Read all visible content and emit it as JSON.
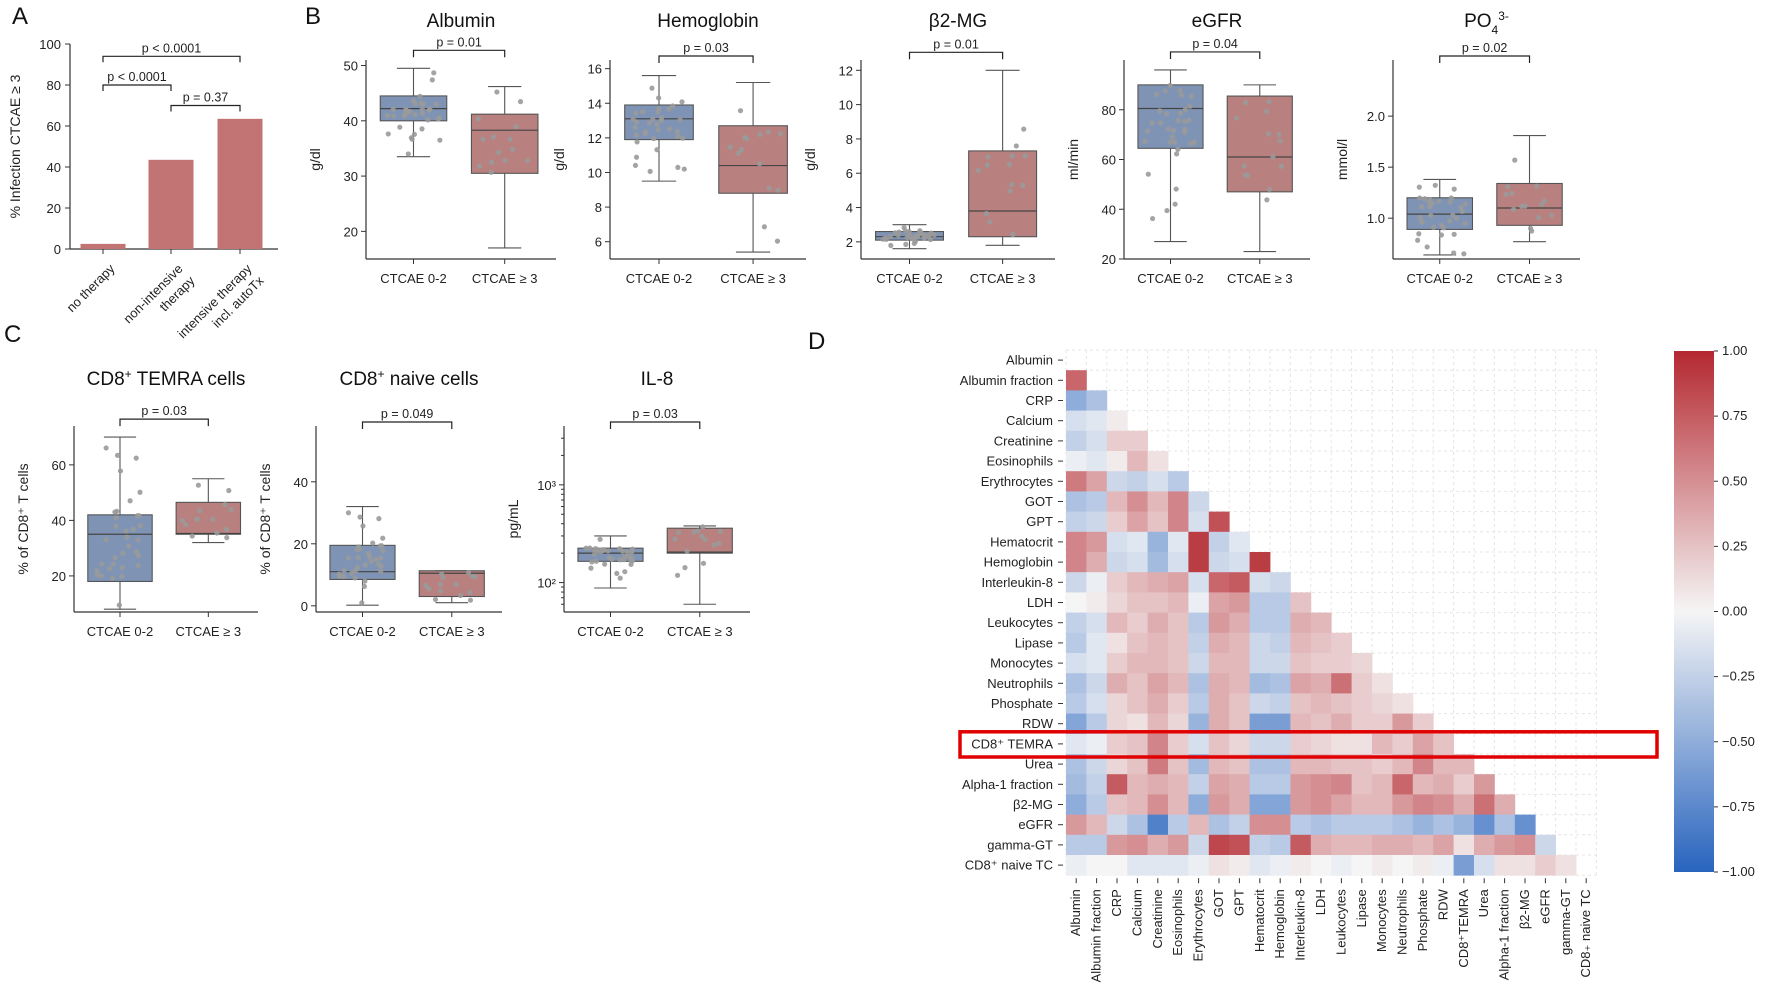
{
  "panel_labels": {
    "A": "A",
    "B": "B",
    "C": "C",
    "D": "D"
  },
  "colors": {
    "bar": "#c27474",
    "blue_box": "#7f94b5",
    "red_box": "#b98080",
    "point": "#9a9a9a",
    "highlight": "#e00000"
  },
  "chart_data": [
    {
      "id": "A",
      "type": "bar",
      "categories": [
        "no therapy",
        "non-intensive therapy",
        "intensive therapy incl. autoTx"
      ],
      "category_lines": [
        [
          "no therapy"
        ],
        [
          "non-intensive",
          "therapy"
        ],
        [
          "intensive therapy",
          "incl. autoTx"
        ]
      ],
      "values": [
        2.5,
        43.5,
        63.5
      ],
      "ylabel": "% Infection CTCAE ≥ 3",
      "ylim": [
        0,
        100
      ],
      "yticks": [
        0,
        20,
        40,
        60,
        80,
        100
      ],
      "comparisons": [
        {
          "from": 0,
          "to": 2,
          "label": "p < 0.0001",
          "y": 94
        },
        {
          "from": 0,
          "to": 1,
          "label": "p < 0.0001",
          "y": 80
        },
        {
          "from": 1,
          "to": 2,
          "label": "p = 0.37",
          "y": 70
        }
      ]
    },
    {
      "id": "B-albumin",
      "type": "box",
      "title": "Albumin",
      "ylabel": "g/dl",
      "ylim": [
        15,
        51
      ],
      "yticks": [
        20,
        30,
        40,
        50
      ],
      "tick_labels": [
        "20",
        "30",
        "40",
        "50"
      ],
      "categories": [
        "CTCAE 0-2",
        "CTCAE ≥ 3"
      ],
      "p_label": "p = 0.01",
      "boxes": [
        {
          "group": "CTCAE 0-2",
          "whisker_low": 33.5,
          "q1": 40,
          "median": 42.2,
          "q3": 44.5,
          "whisker_high": 49.5
        },
        {
          "group": "CTCAE ≥ 3",
          "whisker_low": 17,
          "q1": 30.5,
          "median": 38.3,
          "q3": 41.2,
          "whisker_high": 46.2
        }
      ]
    },
    {
      "id": "B-hemoglobin",
      "type": "box",
      "title": "Hemoglobin",
      "ylabel": "g/dl",
      "ylim": [
        5,
        16.5
      ],
      "yticks": [
        6,
        8,
        10,
        12,
        14,
        16
      ],
      "tick_labels": [
        "6",
        "8",
        "10",
        "12",
        "14",
        "16"
      ],
      "categories": [
        "CTCAE 0-2",
        "CTCAE ≥ 3"
      ],
      "p_label": "p = 0.03",
      "boxes": [
        {
          "group": "CTCAE 0-2",
          "whisker_low": 9.5,
          "q1": 11.9,
          "median": 13.1,
          "q3": 13.9,
          "whisker_high": 15.6
        },
        {
          "group": "CTCAE ≥ 3",
          "whisker_low": 5.4,
          "q1": 8.8,
          "median": 10.4,
          "q3": 12.7,
          "whisker_high": 15.2
        }
      ]
    },
    {
      "id": "B-b2mg",
      "type": "box",
      "title": "β2-MG",
      "ylabel": "g/dl",
      "ylim": [
        1,
        12.6
      ],
      "yticks": [
        2,
        4,
        6,
        8,
        10,
        12
      ],
      "tick_labels": [
        "2",
        "4",
        "6",
        "8",
        "10",
        "12"
      ],
      "categories": [
        "CTCAE 0-2",
        "CTCAE ≥ 3"
      ],
      "p_label": "p = 0.01",
      "boxes": [
        {
          "group": "CTCAE 0-2",
          "whisker_low": 1.6,
          "q1": 2.1,
          "median": 2.3,
          "q3": 2.6,
          "whisker_high": 3.0
        },
        {
          "group": "CTCAE ≥ 3",
          "whisker_low": 1.8,
          "q1": 2.3,
          "median": 3.8,
          "q3": 7.3,
          "whisker_high": 12.0
        }
      ]
    },
    {
      "id": "B-egfr",
      "type": "box",
      "title": "eGFR",
      "ylabel": "ml/min",
      "ylim": [
        20,
        100
      ],
      "yticks": [
        20,
        40,
        60,
        80
      ],
      "tick_labels": [
        "20",
        "40",
        "60",
        "80"
      ],
      "categories": [
        "CTCAE 0-2",
        "CTCAE ≥ 3"
      ],
      "p_label": "p = 0.04",
      "boxes": [
        {
          "group": "CTCAE 0-2",
          "whisker_low": 27,
          "q1": 64.5,
          "median": 80.5,
          "q3": 90,
          "whisker_high": 96
        },
        {
          "group": "CTCAE ≥ 3",
          "whisker_low": 23,
          "q1": 47,
          "median": 61,
          "q3": 85.5,
          "whisker_high": 90
        }
      ]
    },
    {
      "id": "B-po4",
      "type": "box",
      "title": "PO",
      "title_sub": "4",
      "title_sup": "3-",
      "ylabel": "mmol/l",
      "ylim": [
        0.6,
        2.55
      ],
      "yticks": [
        1.0,
        1.5,
        2.0
      ],
      "tick_labels": [
        "1.0",
        "1.5",
        "2.0"
      ],
      "categories": [
        "CTCAE 0-2",
        "CTCAE ≥ 3"
      ],
      "p_label": "p = 0.02",
      "boxes": [
        {
          "group": "CTCAE 0-2",
          "whisker_low": 0.64,
          "q1": 0.89,
          "median": 1.04,
          "q3": 1.2,
          "whisker_high": 1.38
        },
        {
          "group": "CTCAE ≥ 3",
          "whisker_low": 0.77,
          "q1": 0.93,
          "median": 1.1,
          "q3": 1.34,
          "whisker_high": 1.81
        }
      ]
    },
    {
      "id": "C-temra",
      "type": "box",
      "title": "CD8",
      "title_sup": "+",
      "title_rest": " TEMRA cells",
      "ylabel": "% of CD8⁺ T cells",
      "ylim": [
        7,
        74
      ],
      "yticks": [
        20,
        40,
        60
      ],
      "tick_labels": [
        "20",
        "40",
        "60"
      ],
      "categories": [
        "CTCAE 0-2",
        "CTCAE ≥ 3"
      ],
      "p_label": "p = 0.03",
      "boxes": [
        {
          "group": "CTCAE 0-2",
          "whisker_low": 8,
          "q1": 18,
          "median": 35,
          "q3": 42,
          "whisker_high": 70
        },
        {
          "group": "CTCAE ≥ 3",
          "whisker_low": 32,
          "q1": 35,
          "median": 35.3,
          "q3": 46.5,
          "whisker_high": 55
        }
      ]
    },
    {
      "id": "C-naive",
      "type": "box",
      "title": "CD8",
      "title_sup": "+",
      "title_rest": " naive cells",
      "ylabel": "% of CD8⁺ T cells",
      "ylim": [
        -2,
        58
      ],
      "yticks": [
        0,
        20,
        40
      ],
      "tick_labels": [
        "0",
        "20",
        "40"
      ],
      "categories": [
        "CTCAE 0-2",
        "CTCAE ≥ 3"
      ],
      "p_label": "p = 0.049",
      "boxes": [
        {
          "group": "CTCAE 0-2",
          "whisker_low": 0.2,
          "q1": 8.5,
          "median": 11,
          "q3": 19.5,
          "whisker_high": 32
        },
        {
          "group": "CTCAE ≥ 3",
          "whisker_low": 1,
          "q1": 3,
          "median": 10.5,
          "q3": 11.3,
          "whisker_high": 11.3
        }
      ]
    },
    {
      "id": "C-il8",
      "type": "box",
      "scale": "log",
      "title": "IL-8",
      "ylabel": "pg/mL",
      "ylim": [
        50,
        4000
      ],
      "yticks": [
        100,
        1000
      ],
      "tick_labels": [
        "10²",
        "10³"
      ],
      "categories": [
        "CTCAE 0-2",
        "CTCAE ≥ 3"
      ],
      "p_label": "p = 0.03",
      "boxes": [
        {
          "group": "CTCAE 0-2",
          "whisker_low": 88,
          "q1": 165,
          "median": 200,
          "q3": 225,
          "whisker_high": 300
        },
        {
          "group": "CTCAE ≥ 3",
          "whisker_low": 60,
          "q1": 200,
          "median": 205,
          "q3": 360,
          "whisker_high": 380
        }
      ]
    },
    {
      "id": "D",
      "type": "heatmap",
      "row_labels": [
        "Albumin",
        "Albumin fraction",
        "CRP",
        "Calcium",
        "Creatinine",
        "Eosinophils",
        "Erythrocytes",
        "GOT",
        "GPT",
        "Hematocrit",
        "Hemoglobin",
        "Interleukin-8",
        "LDH",
        "Leukocytes",
        "Lipase",
        "Monocytes",
        "Neutrophils",
        "Phosphate",
        "RDW",
        "CD8⁺ TEMRA",
        "Urea",
        "Alpha-1 fraction",
        "β2-MG",
        "eGFR",
        "gamma-GT",
        "CD8⁺ naive TC"
      ],
      "col_labels": [
        "Albumin",
        "Albumin fraction",
        "CRP",
        "Calcium",
        "Creatinine",
        "Eosinophils",
        "Erythrocytes",
        "GOT",
        "GPT",
        "Hematocrit",
        "Hemoglobin",
        "Interleukin-8",
        "LDH",
        "Leukocytes",
        "Lipase",
        "Monocytes",
        "Neutrophils",
        "Phosphate",
        "RDW",
        "CD8⁺TEMRA",
        "Urea",
        "Alpha-1 fraction",
        "β2-MG",
        "eGFR",
        "gamma-GT",
        "CD8₊ naive TC"
      ],
      "highlight_row": "CD8⁺ TEMRA",
      "colorbar": {
        "min": -1.0,
        "max": 1.0,
        "ticks": [
          "1.00",
          "0.75",
          "0.50",
          "0.25",
          "0.00",
          "−0.25",
          "−0.50",
          "−0.75",
          "−1.00"
        ]
      },
      "values": [
        [],
        [
          0.7
        ],
        [
          -0.5,
          -0.35
        ],
        [
          -0.15,
          -0.1,
          0.05
        ],
        [
          -0.25,
          -0.15,
          0.2,
          0.2
        ],
        [
          -0.05,
          -0.1,
          0.05,
          0.3,
          0.1
        ],
        [
          0.6,
          0.4,
          -0.2,
          -0.25,
          -0.15,
          -0.3
        ],
        [
          -0.35,
          -0.3,
          0.3,
          0.5,
          0.3,
          0.55,
          -0.2
        ],
        [
          -0.25,
          -0.2,
          0.2,
          0.4,
          0.25,
          0.55,
          -0.15,
          0.8
        ],
        [
          0.55,
          0.45,
          -0.15,
          -0.1,
          -0.45,
          -0.1,
          0.9,
          -0.25,
          -0.1
        ],
        [
          0.55,
          0.35,
          -0.2,
          -0.15,
          -0.4,
          -0.15,
          0.9,
          -0.2,
          -0.15,
          0.9
        ],
        [
          -0.2,
          -0.05,
          0.2,
          0.3,
          0.35,
          0.4,
          -0.15,
          0.7,
          0.75,
          -0.15,
          -0.2
        ],
        [
          0.0,
          0.05,
          0.15,
          0.25,
          0.25,
          0.3,
          -0.05,
          0.4,
          0.45,
          -0.3,
          -0.3,
          0.25
        ],
        [
          -0.25,
          -0.15,
          0.3,
          0.2,
          0.35,
          0.25,
          -0.3,
          0.45,
          0.35,
          -0.3,
          -0.3,
          0.35,
          0.3
        ],
        [
          -0.3,
          -0.1,
          0.1,
          0.25,
          0.3,
          0.25,
          -0.25,
          0.35,
          0.3,
          -0.2,
          -0.25,
          0.3,
          0.25,
          0.2
        ],
        [
          -0.15,
          -0.1,
          0.2,
          0.3,
          0.3,
          0.25,
          -0.2,
          0.3,
          0.3,
          -0.2,
          -0.2,
          0.25,
          0.2,
          0.2,
          0.15
        ],
        [
          -0.35,
          -0.2,
          0.35,
          0.25,
          0.4,
          0.3,
          -0.35,
          0.35,
          0.3,
          -0.4,
          -0.35,
          0.4,
          0.35,
          0.65,
          0.2,
          0.1
        ],
        [
          -0.3,
          -0.15,
          0.15,
          0.25,
          0.35,
          0.2,
          -0.3,
          0.35,
          0.25,
          -0.2,
          -0.25,
          0.25,
          0.3,
          0.25,
          0.2,
          0.15,
          0.1
        ],
        [
          -0.55,
          -0.3,
          0.15,
          0.1,
          0.3,
          0.15,
          -0.45,
          0.35,
          0.25,
          -0.6,
          -0.6,
          0.3,
          0.25,
          0.35,
          0.2,
          0.2,
          0.45,
          0.2
        ],
        [
          -0.1,
          -0.05,
          0.2,
          0.25,
          0.55,
          0.2,
          -0.15,
          0.25,
          0.15,
          -0.2,
          -0.2,
          0.2,
          0.15,
          0.1,
          0.1,
          0.3,
          0.2,
          0.4,
          0.25
        ],
        [
          -0.35,
          -0.2,
          0.15,
          0.25,
          0.6,
          0.25,
          -0.4,
          0.3,
          0.25,
          -0.35,
          -0.35,
          0.3,
          0.3,
          0.25,
          0.25,
          0.2,
          0.3,
          0.55,
          0.3,
          0.3
        ],
        [
          -0.4,
          -0.25,
          0.75,
          0.3,
          0.35,
          0.3,
          -0.25,
          0.4,
          0.35,
          -0.3,
          -0.3,
          0.45,
          0.5,
          0.55,
          0.25,
          0.3,
          0.7,
          0.3,
          0.35,
          0.2,
          0.45
        ],
        [
          -0.5,
          -0.3,
          0.25,
          0.3,
          0.5,
          0.3,
          -0.5,
          0.45,
          0.35,
          -0.55,
          -0.55,
          0.45,
          0.5,
          0.4,
          0.3,
          0.3,
          0.45,
          0.55,
          0.5,
          0.35,
          0.65,
          0.35
        ],
        [
          0.45,
          0.3,
          -0.2,
          -0.35,
          -0.8,
          -0.3,
          0.3,
          -0.35,
          -0.25,
          0.5,
          0.5,
          -0.3,
          -0.35,
          -0.3,
          -0.3,
          -0.3,
          -0.35,
          -0.45,
          -0.35,
          -0.45,
          -0.7,
          -0.35,
          -0.7
        ],
        [
          -0.3,
          -0.3,
          0.45,
          0.5,
          0.35,
          0.45,
          -0.2,
          0.85,
          0.8,
          -0.25,
          -0.3,
          0.75,
          0.35,
          0.3,
          0.3,
          0.35,
          0.35,
          0.3,
          0.4,
          0.1,
          0.35,
          0.45,
          0.5,
          -0.2
        ],
        [
          -0.05,
          0.0,
          0.0,
          -0.1,
          -0.1,
          -0.1,
          -0.05,
          0.1,
          0.05,
          -0.1,
          -0.05,
          0.05,
          0.0,
          -0.05,
          0.0,
          0.05,
          0.0,
          0.05,
          -0.05,
          -0.6,
          -0.15,
          0.1,
          0.1,
          0.2,
          0.1
        ]
      ]
    }
  ]
}
